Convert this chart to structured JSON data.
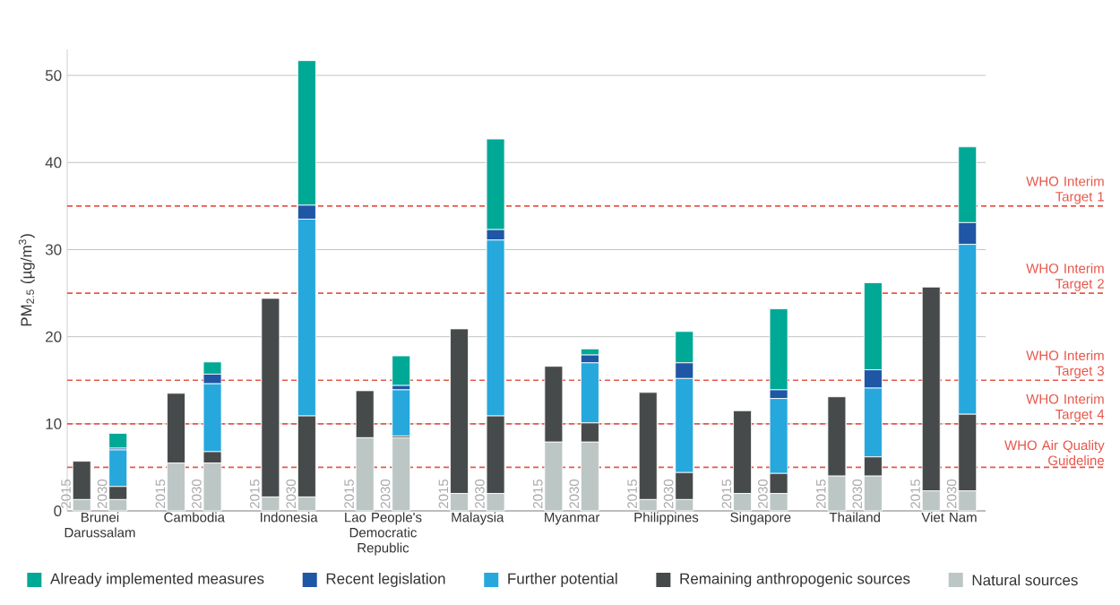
{
  "chart_data": {
    "type": "bar",
    "stacked": true,
    "ylabel": "PM$_{2.5}$ (µg/m$^{3}$)",
    "categories": [
      "2015",
      "2030",
      "2015",
      "2030",
      "2015",
      "2030",
      "2015",
      "2030",
      "2015",
      "2030",
      "2015",
      "2030",
      "2015",
      "2030",
      "2015",
      "2030",
      "2015",
      "2030",
      "2015",
      "2030"
    ],
    "annotations": [
      "Brunei Darussalam",
      "Cambodia",
      "Indonesia",
      "Lao People's Democratic Republic",
      "Malaysia",
      "Myanmar",
      "Philippines",
      "Singapore",
      "Thailand",
      "Viet Nam"
    ],
    "series": [
      {
        "name": "Natural sources",
        "color": "#bcc6c5",
        "values": [
          1.3,
          1.3,
          5.5,
          5.5,
          1.6,
          1.6,
          8.4,
          8.4,
          2.0,
          2.0,
          7.9,
          7.9,
          1.3,
          1.3,
          2.0,
          2.0,
          4.0,
          4.0,
          2.3,
          2.3
        ]
      },
      {
        "name": "Remaining anthropogenic sources",
        "color": "#464a4a",
        "values": [
          4.4,
          1.5,
          8.0,
          1.3,
          22.8,
          9.3,
          5.4,
          0.2,
          18.9,
          8.9,
          8.7,
          2.2,
          12.3,
          3.1,
          9.5,
          2.3,
          9.1,
          2.2,
          23.4,
          8.8
        ]
      },
      {
        "name": "Further potential",
        "color": "#26a8dc",
        "values": [
          null,
          4.2,
          null,
          7.8,
          null,
          22.6,
          null,
          5.3,
          null,
          20.2,
          null,
          6.9,
          null,
          10.8,
          null,
          8.6,
          null,
          7.9,
          null,
          19.5
        ]
      },
      {
        "name": "Recent legislation",
        "color": "#1f56a5",
        "values": [
          null,
          0.2,
          null,
          1.1,
          null,
          1.6,
          null,
          0.5,
          null,
          1.2,
          null,
          0.9,
          null,
          1.8,
          null,
          1.0,
          null,
          2.1,
          null,
          2.5
        ]
      },
      {
        "name": "Already implemented measures",
        "color": "#00a896",
        "values": [
          null,
          1.7,
          null,
          1.4,
          null,
          16.6,
          null,
          3.4,
          null,
          10.4,
          null,
          0.7,
          null,
          3.6,
          null,
          9.3,
          null,
          10.0,
          null,
          8.7
        ]
      }
    ],
    "ylim": [
      0,
      53
    ],
    "yticks": [
      0,
      10,
      20,
      30,
      40,
      50
    ],
    "grid": "y",
    "legend": "bottom",
    "ref_lines": [
      {
        "axis": "y",
        "value": 35,
        "label": "WHO Interim Target 1",
        "color": "#e8574b",
        "line_style": "dashed"
      },
      {
        "axis": "y",
        "value": 25,
        "label": "WHO Interim Target 2",
        "color": "#e8574b",
        "line_style": "dashed"
      },
      {
        "axis": "y",
        "value": 15,
        "label": "WHO Interim Target 3",
        "color": "#e8574b",
        "line_style": "dashed"
      },
      {
        "axis": "y",
        "value": 10,
        "label": "WHO Interim Target 4",
        "color": "#e8574b",
        "line_style": "dashed"
      },
      {
        "axis": "y",
        "value": 5,
        "label": "WHO Air Quality Guideline",
        "color": "#e8574b",
        "line_style": "dashed"
      }
    ]
  }
}
